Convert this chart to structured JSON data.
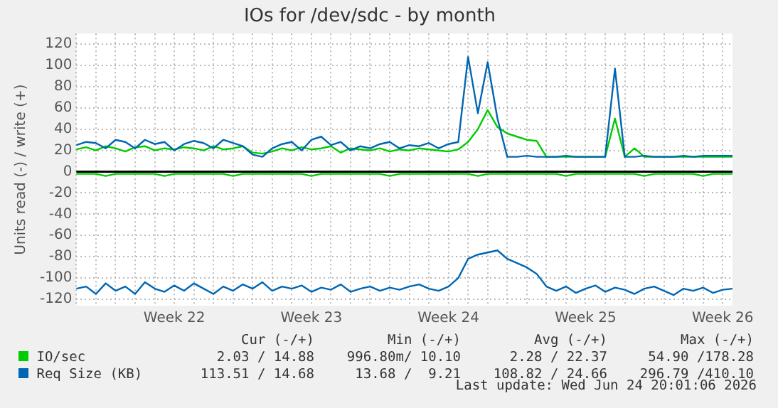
{
  "chart_data": {
    "type": "line",
    "title": "IOs for /dev/sdc - by month",
    "ylabel": "Units read (-) / write (+)",
    "categories": [
      null,
      null,
      null,
      null,
      null,
      null,
      null,
      null,
      null,
      null,
      "Week 22",
      null,
      null,
      null,
      null,
      null,
      null,
      null,
      null,
      null,
      null,
      null,
      null,
      null,
      "Week 23",
      null,
      null,
      null,
      null,
      null,
      null,
      null,
      null,
      null,
      null,
      null,
      null,
      null,
      "Week 24",
      null,
      null,
      null,
      null,
      null,
      null,
      null,
      null,
      null,
      null,
      null,
      null,
      null,
      "Week 25",
      null,
      null,
      null,
      null,
      null,
      null,
      null,
      null,
      null,
      null,
      null,
      null,
      null,
      "Week 26",
      null
    ],
    "ylim": [
      -126,
      130
    ],
    "yticks": [
      -120,
      -100,
      -80,
      -60,
      -40,
      -20,
      0,
      20,
      40,
      60,
      80,
      100,
      120
    ],
    "grid": true,
    "legend": "bottom",
    "marker": "none",
    "line_style": "solid",
    "ref_lines": [
      {
        "axis": "y",
        "value": 0,
        "color": "#000000"
      }
    ],
    "series": [
      {
        "name": "IO/sec",
        "color": "#00cc00",
        "values": [
          21,
          23,
          20,
          24,
          22,
          19,
          23,
          24,
          20,
          22,
          21,
          23,
          22,
          20,
          24,
          21,
          22,
          24,
          18,
          17,
          19,
          22,
          20,
          23,
          21,
          22,
          24,
          18,
          22,
          21,
          20,
          22,
          19,
          21,
          20,
          22,
          21,
          20,
          19,
          21,
          28,
          40,
          58,
          42,
          36,
          33,
          30,
          29,
          14,
          14,
          14,
          14,
          14,
          14,
          14,
          50,
          14,
          22,
          14,
          14,
          14,
          14,
          14,
          14,
          14,
          14,
          14,
          14
        ]
      },
      {
        "color": "#00cc00",
        "values": [
          -2,
          -2,
          -2,
          -4,
          -2,
          -2,
          -2,
          -2,
          -2,
          -4,
          -2,
          -2,
          -2,
          -2,
          -2,
          -2,
          -4,
          -2,
          -2,
          -2,
          -2,
          -2,
          -2,
          -2,
          -4,
          -2,
          -2,
          -2,
          -2,
          -2,
          -2,
          -2,
          -4,
          -2,
          -2,
          -2,
          -2,
          -2,
          -2,
          -2,
          -2,
          -4,
          -2,
          -2,
          -2,
          -2,
          -2,
          -2,
          -2,
          -2,
          -4,
          -2,
          -2,
          -2,
          -2,
          -2,
          -2,
          -2,
          -4,
          -2,
          -2,
          -2,
          -2,
          -2,
          -4,
          -2,
          -2,
          -2
        ]
      },
      {
        "name": "Req Size (KB)",
        "color": "#0066b3",
        "values": [
          25,
          28,
          27,
          22,
          30,
          28,
          22,
          30,
          26,
          28,
          20,
          26,
          29,
          27,
          22,
          30,
          27,
          24,
          16,
          14,
          22,
          26,
          28,
          20,
          30,
          33,
          25,
          28,
          20,
          24,
          22,
          26,
          28,
          22,
          25,
          24,
          27,
          22,
          26,
          28,
          108,
          55,
          103,
          50,
          14,
          14,
          15,
          14,
          14,
          14,
          15,
          14,
          14,
          14,
          14,
          97,
          14,
          14,
          15,
          14,
          14,
          14,
          15,
          14,
          15,
          15,
          15,
          15
        ]
      },
      {
        "color": "#0066b3",
        "values": [
          -110,
          -108,
          -115,
          -105,
          -112,
          -108,
          -115,
          -104,
          -110,
          -113,
          -107,
          -112,
          -105,
          -110,
          -115,
          -108,
          -112,
          -106,
          -110,
          -104,
          -112,
          -108,
          -110,
          -107,
          -113,
          -109,
          -111,
          -106,
          -113,
          -110,
          -108,
          -112,
          -109,
          -111,
          -108,
          -106,
          -110,
          -112,
          -108,
          -100,
          -82,
          -78,
          -76,
          -74,
          -82,
          -86,
          -90,
          -96,
          -108,
          -112,
          -108,
          -114,
          -110,
          -107,
          -113,
          -109,
          -111,
          -115,
          -110,
          -108,
          -112,
          -116,
          -110,
          -112,
          -109,
          -114,
          -111,
          -110
        ]
      }
    ],
    "annotations": [
      "Cur (-/+)",
      "Min (-/+)",
      "Avg (-/+)",
      "Max (-/+)",
      "2.03 / 14.88",
      "996.80m/ 10.10",
      "2.28 / 22.37",
      "54.90 /178.28",
      "113.51 / 14.68",
      "13.68 /  9.21",
      "108.82 / 24.66",
      "296.79 /410.10",
      "Last update: Wed Jun 24 20:01:06 2026"
    ]
  }
}
